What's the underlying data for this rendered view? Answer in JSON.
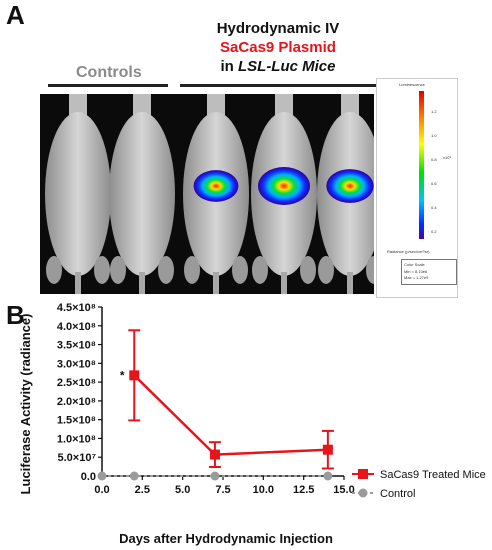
{
  "panelA": {
    "letter": "A",
    "header_line1": "Hydrodynamic IV",
    "header_line2": "SaCas9 Plasmid",
    "header_line3_prefix": "in ",
    "header_line3_italic": "LSL-Luc Mice",
    "controls_label": "Controls",
    "header_line2_color": "#e8141b",
    "controls_color": "#8a8a8a",
    "colorbar": {
      "title": "Luminescence",
      "ticks": [
        "1.2",
        "1.0",
        "0.8",
        "0.6",
        "0.4",
        "0.2"
      ],
      "unit": "x10⁹",
      "units_label": "Radiance (p/sec/cm²/sr)",
      "color_scale_label": "Color Scale",
      "min_label": "Min = 8.10e6",
      "max_label": "Max = 1.27e9"
    },
    "mice": [
      {
        "group": "control",
        "signal": 0
      },
      {
        "group": "control",
        "signal": 0
      },
      {
        "group": "treated",
        "signal": 0.55
      },
      {
        "group": "treated",
        "signal": 1.0
      },
      {
        "group": "treated",
        "signal": 0.7
      }
    ]
  },
  "panelB": {
    "letter": "B"
  },
  "chart_data": {
    "type": "line",
    "xlabel": "Days after Hydrodynamic Injection",
    "ylabel": "Luciferase Activity (radiance)",
    "xlim": [
      0,
      15
    ],
    "ylim": [
      0,
      450000000
    ],
    "xticks": [
      "0.0",
      "2.5",
      "5.0",
      "7.5",
      "10.0",
      "12.5",
      "15.0"
    ],
    "yticks": [
      "0.0",
      "5.0×10⁷",
      "1.0×10⁸",
      "1.5×10⁸",
      "2.0×10⁸",
      "2.5×10⁸",
      "3.0×10⁸",
      "3.5×10⁸",
      "4.0×10⁸",
      "4.5×10⁸"
    ],
    "legend_position": "right",
    "annotations": [
      {
        "text": "*",
        "x": 2,
        "y": 270000000
      }
    ],
    "series": [
      {
        "name": "SaCas9 Treated Mice",
        "color": "#e8141b",
        "marker": "square",
        "x": [
          2,
          7,
          14
        ],
        "y": [
          268000000,
          57000000,
          70000000
        ],
        "error": [
          120000000,
          33000000,
          50000000
        ]
      },
      {
        "name": "Control",
        "color": "#9b9b9b",
        "marker": "circle",
        "dashed": true,
        "x": [
          0,
          2,
          7,
          14
        ],
        "y": [
          0,
          0,
          0,
          0
        ],
        "error": [
          0,
          0,
          0,
          0
        ]
      }
    ]
  }
}
